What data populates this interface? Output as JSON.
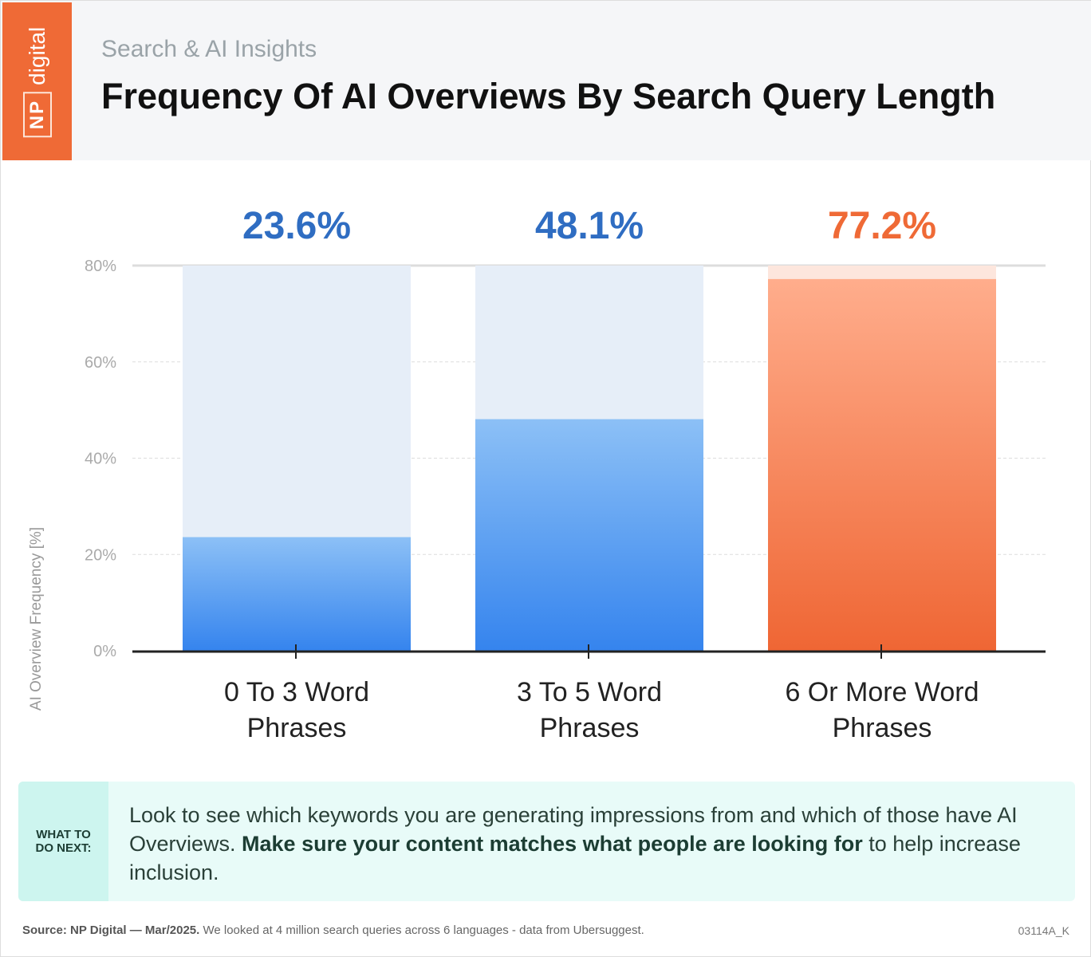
{
  "header": {
    "logo_np": "NP",
    "logo_digital": "digital",
    "subtitle": "Search & AI Insights",
    "title": "Frequency Of AI Overviews By Search Query Length"
  },
  "chart_data": {
    "type": "bar",
    "title": "Frequency Of AI Overviews By Search Query Length",
    "ylabel": "AI Overview Frequency [%]",
    "xlabel": "",
    "ylim": [
      0,
      80
    ],
    "yticks": [
      "0%",
      "20%",
      "40%",
      "60%",
      "80%"
    ],
    "categories": [
      [
        "0 To 3 Word",
        "Phrases"
      ],
      [
        "3 To 5 Word",
        "Phrases"
      ],
      [
        "6 Or More Word",
        "Phrases"
      ]
    ],
    "values": [
      23.6,
      48.1,
      77.2
    ],
    "value_labels": [
      "23.6%",
      "48.1%",
      "77.2%"
    ],
    "colors": [
      "#3a86ee",
      "#3a86ee",
      "#ef6a36"
    ],
    "grid": true
  },
  "callout": {
    "label_line1": "WHAT TO",
    "label_line2": "DO NEXT:",
    "text_before": "Look to see which keywords you are generating impressions from and which of those have AI Overviews. ",
    "text_bold": "Make sure your content matches what people are looking for",
    "text_after": " to help increase inclusion."
  },
  "footer": {
    "source_bold": "Source: NP Digital — Mar/2025.",
    "source_text": " We looked at 4 million search queries across 6 languages - data from Ubersuggest.",
    "code": "03114A_K"
  }
}
